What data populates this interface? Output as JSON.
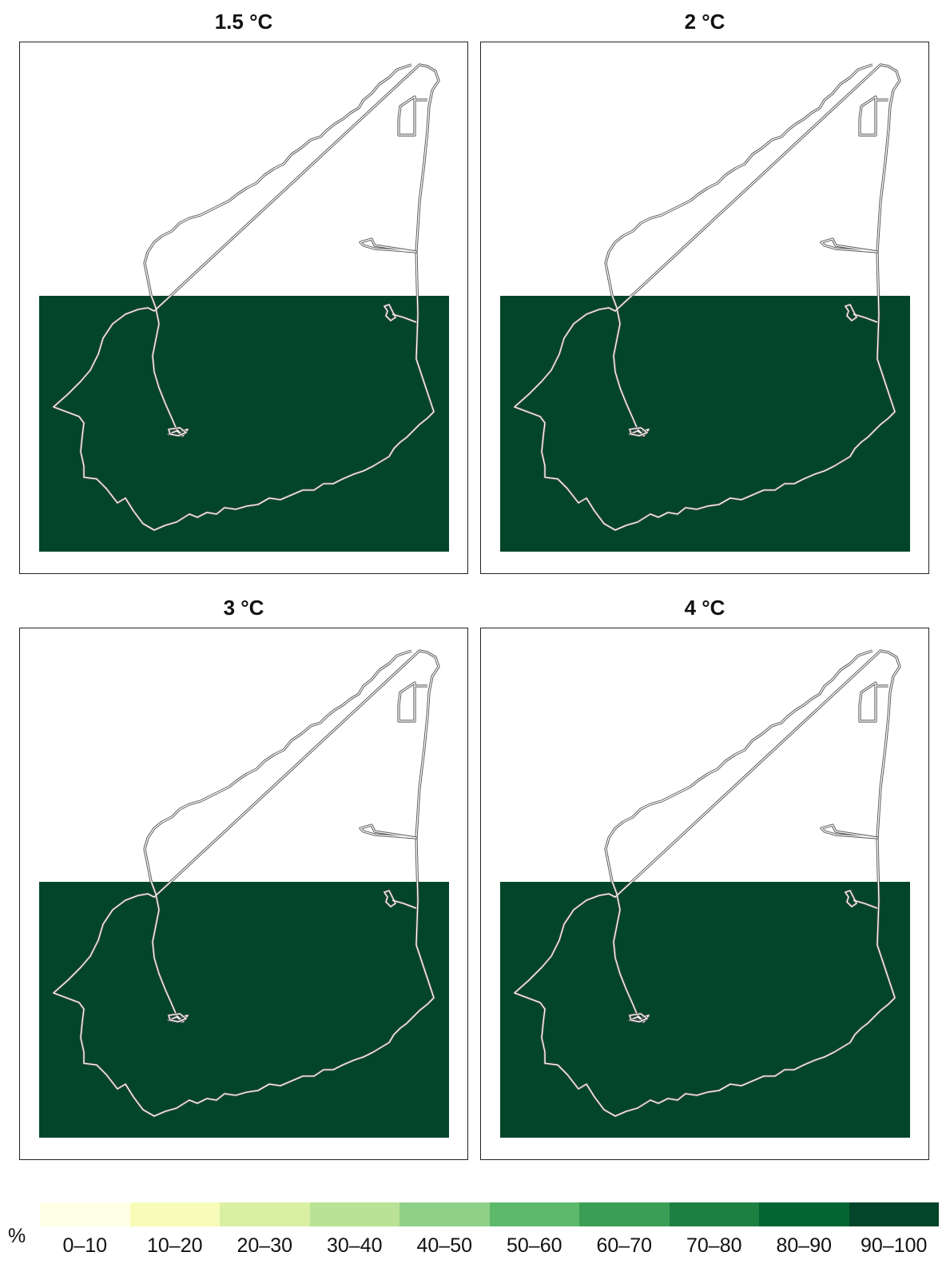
{
  "panels": [
    {
      "title": "1.5 °C",
      "level": "90–100"
    },
    {
      "title": "2 °C",
      "level": "90–100"
    },
    {
      "title": "3 °C",
      "level": "90–100"
    },
    {
      "title": "4 °C",
      "level": "90–100"
    }
  ],
  "legend": {
    "unit": "%",
    "classes": [
      {
        "label": "0–10",
        "color": "#ffffe5"
      },
      {
        "label": "10–20",
        "color": "#f7fcb9"
      },
      {
        "label": "20–30",
        "color": "#d9f0a3"
      },
      {
        "label": "30–40",
        "color": "#b9e296"
      },
      {
        "label": "40–50",
        "color": "#8fd087"
      },
      {
        "label": "50–60",
        "color": "#5db96b"
      },
      {
        "label": "60–70",
        "color": "#3a9f55"
      },
      {
        "label": "70–80",
        "color": "#1d8043"
      },
      {
        "label": "80–90",
        "color": "#026533"
      },
      {
        "label": "90–100",
        "color": "#02452a"
      }
    ]
  },
  "colors": {
    "outline": "#555555",
    "outline_inner": "#ffffff",
    "frame": "#222222"
  }
}
